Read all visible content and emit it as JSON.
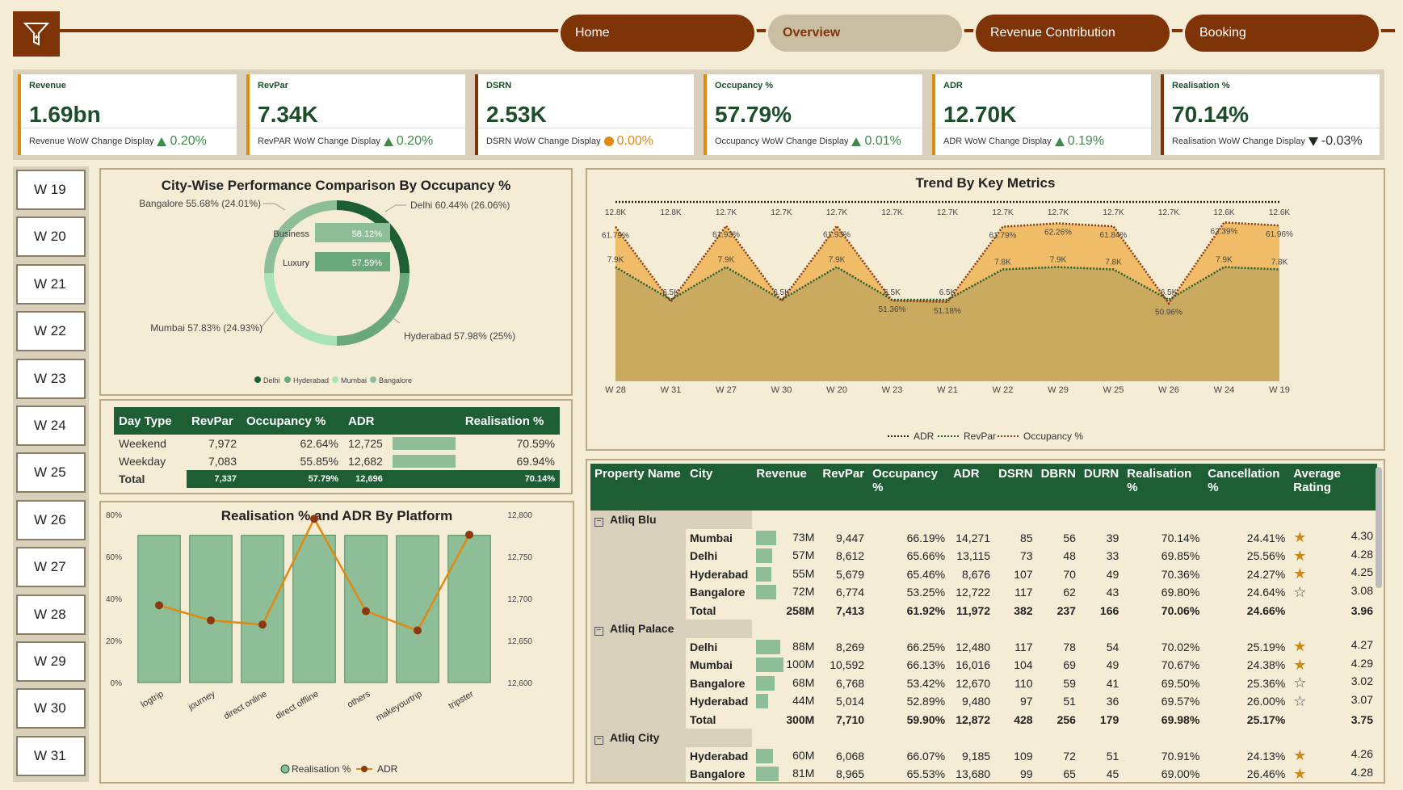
{
  "nav": {
    "home": "Home",
    "overview": "Overview",
    "revenue_contribution": "Revenue Contribution",
    "booking": "Booking"
  },
  "kpis": [
    {
      "label": "Revenue",
      "value": "1.69bn",
      "foot_label": "Revenue WoW Change Display",
      "delta": "0.20%",
      "indicator": "up"
    },
    {
      "label": "RevPar",
      "value": "7.34K",
      "foot_label": "RevPAR WoW Change Display",
      "delta": "0.20%",
      "indicator": "up"
    },
    {
      "label": "DSRN",
      "value": "2.53K",
      "foot_label": "DSRN WoW Change Display",
      "delta": "0.00%",
      "indicator": "flat"
    },
    {
      "label": "Occupancy %",
      "value": "57.79%",
      "foot_label": "Occupancy WoW Change Display",
      "delta": "0.01%",
      "indicator": "up"
    },
    {
      "label": "ADR",
      "value": "12.70K",
      "foot_label": "ADR WoW Change Display",
      "delta": "0.19%",
      "indicator": "up"
    },
    {
      "label": "Realisation %",
      "value": "70.14%",
      "foot_label": "Realisation WoW Change Display",
      "delta": "-0.03%",
      "indicator": "down"
    }
  ],
  "weeks": [
    "W 19",
    "W 20",
    "W 21",
    "W 22",
    "W 23",
    "W 24",
    "W 25",
    "W 26",
    "W 27",
    "W 28",
    "W 29",
    "W 30",
    "W 31"
  ],
  "city_chart": {
    "title": "City-Wise Performance Comparison By Occupancy %",
    "labels": {
      "bangalore": "Bangalore 55.68% (24.01%)",
      "delhi": "Delhi 60.44% (26.06%)",
      "mumbai": "Mumbai 57.83% (24.93%)",
      "hyderabad": "Hyderabad 57.98% (25%)"
    },
    "business_label": "Business",
    "business_value": "58.12%",
    "luxury_label": "Luxury",
    "luxury_value": "57.59%",
    "legend": [
      "Delhi",
      "Hyderabad",
      "Mumbai",
      "Bangalore"
    ]
  },
  "day_type": {
    "headers": [
      "Day Type",
      "RevPar",
      "Occupancy %",
      "ADR",
      "",
      "Realisation %"
    ],
    "rows": [
      {
        "type": "Weekend",
        "revpar": "7,972",
        "occ": "62.64%",
        "adr": "12,725",
        "real": "70.59%"
      },
      {
        "type": "Weekday",
        "revpar": "7,083",
        "occ": "55.85%",
        "adr": "12,682",
        "real": "69.94%"
      }
    ],
    "total": {
      "type": "Total",
      "revpar": "7,337",
      "occ": "57.79%",
      "adr": "12,696",
      "real": "70.14%"
    }
  },
  "chart_data": [
    {
      "type": "line",
      "title": "Trend By Key Metrics",
      "categories": [
        "W 28",
        "W 31",
        "W 27",
        "W 30",
        "W 20",
        "W 23",
        "W 21",
        "W 22",
        "W 29",
        "W 25",
        "W 26",
        "W 24",
        "W 19"
      ],
      "series": [
        {
          "name": "ADR",
          "values": [
            12.8,
            12.8,
            12.7,
            12.7,
            12.7,
            12.7,
            12.7,
            12.7,
            12.7,
            12.7,
            12.7,
            12.6,
            12.6
          ],
          "labels": [
            "12.8K",
            "12.8K",
            "12.7K",
            "12.7K",
            "12.7K",
            "12.7K",
            "12.7K",
            "12.7K",
            "12.7K",
            "12.7K",
            "12.7K",
            "12.6K",
            "12.6K"
          ]
        },
        {
          "name": "RevPar",
          "values": [
            7.9,
            6.5,
            7.9,
            6.5,
            7.9,
            6.5,
            6.5,
            7.8,
            7.9,
            7.8,
            6.5,
            7.9,
            7.8
          ],
          "labels": [
            "7.9K",
            "6.5K",
            "7.9K",
            "6.5K",
            "7.9K",
            "6.5K",
            "6.5K",
            "7.8K",
            "7.9K",
            "7.8K",
            "6.5K",
            "7.9K",
            "7.8K"
          ]
        },
        {
          "name": "Occupancy %",
          "values": [
            61.79,
            51.2,
            61.9,
            51.3,
            61.9,
            51.36,
            51.18,
            61.79,
            62.26,
            61.84,
            50.96,
            62.39,
            61.96
          ],
          "labels": [
            "61.79%",
            "",
            "61.93%",
            "",
            "61.93%",
            "51.36%",
            "51.18%",
            "61.79%",
            "62.26%",
            "61.84%",
            "50.96%",
            "62.39%",
            "61.96%"
          ]
        }
      ],
      "legend": "bottom"
    },
    {
      "type": "bar",
      "title": "Realisation % and ADR By Platform",
      "categories": [
        "logtrip",
        "journey",
        "direct online",
        "direct offline",
        "others",
        "makeyourtrip",
        "tripster"
      ],
      "series": [
        {
          "name": "Realisation %",
          "values": [
            70.1,
            70.1,
            70.1,
            70.2,
            70.1,
            70.0,
            70.1
          ]
        },
        {
          "name": "ADR",
          "values": [
            12692,
            12674,
            12669,
            12795,
            12685,
            12662,
            12776
          ]
        }
      ],
      "y_left_ticks": [
        "0%",
        "20%",
        "40%",
        "60%",
        "80%"
      ],
      "y_right_ticks": [
        "12,600",
        "12,650",
        "12,700",
        "12,750",
        "12,800"
      ],
      "ylim_left": [
        0,
        80
      ],
      "ylim_right": [
        12600,
        12800
      ],
      "legend": "bottom"
    }
  ],
  "property_table": {
    "headers": [
      "Property Name",
      "City",
      "Revenue",
      "RevPar",
      "Occupancy %",
      "ADR",
      "DSRN",
      "DBRN",
      "DURN",
      "Realisation %",
      "Cancellation %",
      "Average Rating"
    ],
    "groups": [
      {
        "name": "Atliq Blu",
        "rows": [
          {
            "city": "Mumbai",
            "revenue": "73M",
            "bar": 0.73,
            "revpar": "9,447",
            "occ": "66.19%",
            "adr": "14,271",
            "dsrn": "85",
            "dbrn": "56",
            "durn": "39",
            "real": "70.14%",
            "canc": "24.41%",
            "star": "full",
            "rating": "4.30"
          },
          {
            "city": "Delhi",
            "revenue": "57M",
            "bar": 0.57,
            "revpar": "8,612",
            "occ": "65.66%",
            "adr": "13,115",
            "dsrn": "73",
            "dbrn": "48",
            "durn": "33",
            "real": "69.85%",
            "canc": "25.56%",
            "star": "full",
            "rating": "4.28"
          },
          {
            "city": "Hyderabad",
            "revenue": "55M",
            "bar": 0.55,
            "revpar": "5,679",
            "occ": "65.46%",
            "adr": "8,676",
            "dsrn": "107",
            "dbrn": "70",
            "durn": "49",
            "real": "70.36%",
            "canc": "24.27%",
            "star": "full",
            "rating": "4.25"
          },
          {
            "city": "Bangalore",
            "revenue": "72M",
            "bar": 0.72,
            "revpar": "6,774",
            "occ": "53.25%",
            "adr": "12,722",
            "dsrn": "117",
            "dbrn": "62",
            "durn": "43",
            "real": "69.80%",
            "canc": "24.64%",
            "star": "outline",
            "rating": "3.08"
          }
        ],
        "total": {
          "revenue": "258M",
          "revpar": "7,413",
          "occ": "61.92%",
          "adr": "11,972",
          "dsrn": "382",
          "dbrn": "237",
          "durn": "166",
          "real": "70.06%",
          "canc": "24.66%",
          "rating": "3.96"
        }
      },
      {
        "name": "Atliq Palace",
        "rows": [
          {
            "city": "Delhi",
            "revenue": "88M",
            "bar": 0.88,
            "revpar": "8,269",
            "occ": "66.25%",
            "adr": "12,480",
            "dsrn": "117",
            "dbrn": "78",
            "durn": "54",
            "real": "70.02%",
            "canc": "25.19%",
            "star": "full",
            "rating": "4.27"
          },
          {
            "city": "Mumbai",
            "revenue": "100M",
            "bar": 1.0,
            "revpar": "10,592",
            "occ": "66.13%",
            "adr": "16,016",
            "dsrn": "104",
            "dbrn": "69",
            "durn": "49",
            "real": "70.67%",
            "canc": "24.38%",
            "star": "full",
            "rating": "4.29"
          },
          {
            "city": "Bangalore",
            "revenue": "68M",
            "bar": 0.68,
            "revpar": "6,768",
            "occ": "53.42%",
            "adr": "12,670",
            "dsrn": "110",
            "dbrn": "59",
            "durn": "41",
            "real": "69.50%",
            "canc": "25.36%",
            "star": "outline",
            "rating": "3.02"
          },
          {
            "city": "Hyderabad",
            "revenue": "44M",
            "bar": 0.44,
            "revpar": "5,014",
            "occ": "52.89%",
            "adr": "9,480",
            "dsrn": "97",
            "dbrn": "51",
            "durn": "36",
            "real": "69.57%",
            "canc": "26.00%",
            "star": "outline",
            "rating": "3.07"
          }
        ],
        "total": {
          "revenue": "300M",
          "revpar": "7,710",
          "occ": "59.90%",
          "adr": "12,872",
          "dsrn": "428",
          "dbrn": "256",
          "durn": "179",
          "real": "69.98%",
          "canc": "25.17%",
          "rating": "3.75"
        }
      },
      {
        "name": "Atliq City",
        "rows": [
          {
            "city": "Hyderabad",
            "revenue": "60M",
            "bar": 0.6,
            "revpar": "6,068",
            "occ": "66.07%",
            "adr": "9,185",
            "dsrn": "109",
            "dbrn": "72",
            "durn": "51",
            "real": "70.91%",
            "canc": "24.13%",
            "star": "full",
            "rating": "4.26"
          },
          {
            "city": "Bangalore",
            "revenue": "81M",
            "bar": 0.81,
            "revpar": "8,965",
            "occ": "65.53%",
            "adr": "13,680",
            "dsrn": "99",
            "dbrn": "65",
            "durn": "45",
            "real": "69.00%",
            "canc": "26.46%",
            "star": "full",
            "rating": "4.28"
          }
        ]
      }
    ]
  },
  "colors": {
    "brand": "#7f3408",
    "green_dark": "#1e5e34",
    "green_light": "#8dbe98",
    "orange": "#e08a12",
    "background": "#f5ecd6"
  }
}
